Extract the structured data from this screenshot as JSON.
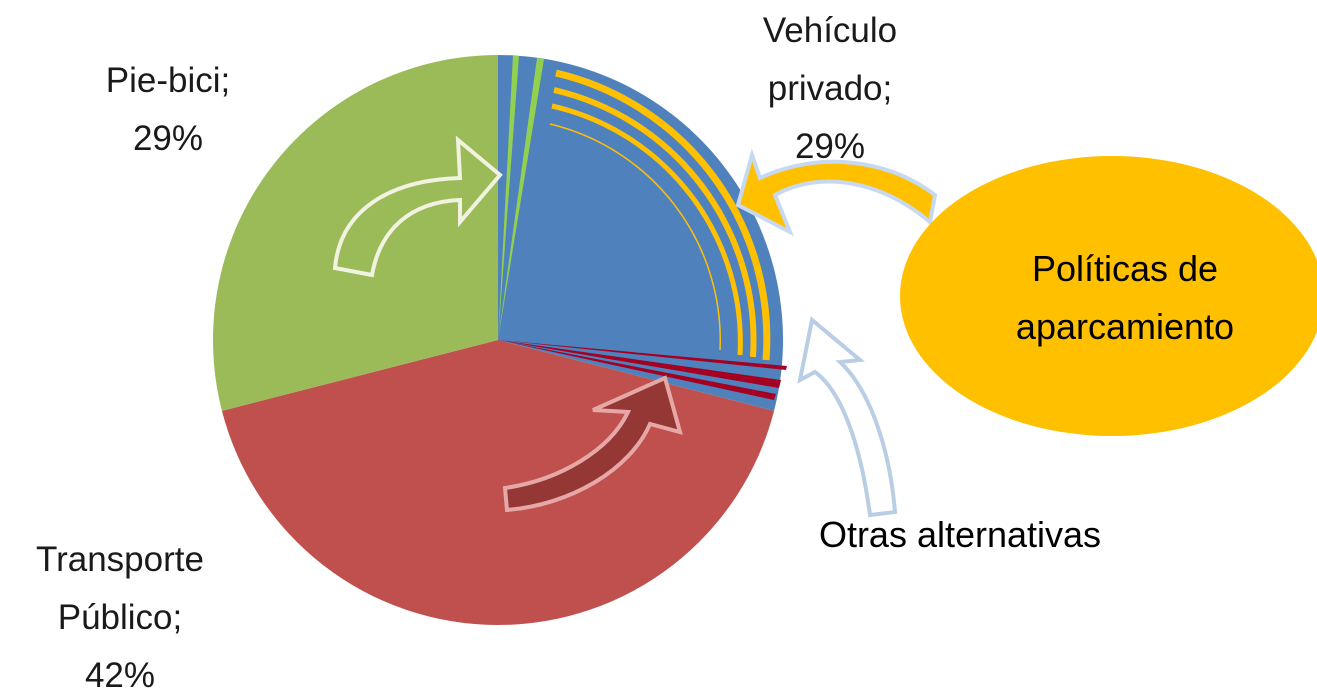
{
  "chart_data": {
    "type": "pie",
    "categories": [
      "Vehículo privado;",
      "Transporte Público;",
      "Pie-bici;"
    ],
    "values": [
      29,
      42,
      29
    ],
    "value_labels": [
      "29%",
      "42%",
      "29%"
    ],
    "colors": [
      "#4f81bd",
      "#c0504d",
      "#9bbb59"
    ],
    "annotations": [
      "Políticas de aparcamiento",
      "Otras alternativas"
    ]
  }
}
